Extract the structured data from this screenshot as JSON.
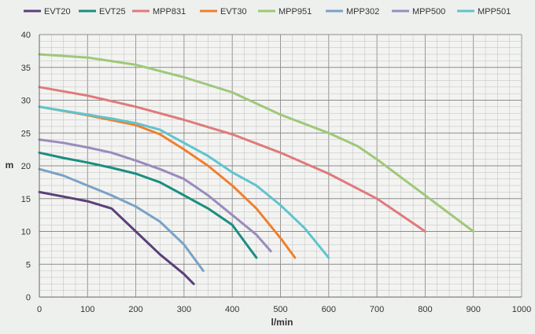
{
  "chart_data": {
    "type": "line",
    "xlabel": "l/min",
    "ylabel": "m",
    "xlim": [
      0,
      1000
    ],
    "ylim": [
      0,
      40
    ],
    "x_ticks": [
      0,
      100,
      200,
      300,
      400,
      500,
      600,
      700,
      800,
      900,
      1000
    ],
    "y_ticks": [
      0,
      5,
      10,
      15,
      20,
      25,
      30,
      35,
      40
    ],
    "grid": true,
    "legend_position": "top",
    "series": [
      {
        "name": "EVT20",
        "color": "#5b3f7a",
        "points": [
          [
            0,
            16
          ],
          [
            50,
            15.3
          ],
          [
            100,
            14.6
          ],
          [
            150,
            13.5
          ],
          [
            200,
            10
          ],
          [
            250,
            6.5
          ],
          [
            300,
            3.5
          ],
          [
            320,
            2
          ]
        ]
      },
      {
        "name": "EVT25",
        "color": "#1a8e80",
        "points": [
          [
            0,
            22
          ],
          [
            50,
            21.2
          ],
          [
            100,
            20.5
          ],
          [
            150,
            19.7
          ],
          [
            200,
            18.8
          ],
          [
            250,
            17.5
          ],
          [
            300,
            15.5
          ],
          [
            350,
            13.5
          ],
          [
            400,
            11
          ],
          [
            430,
            8
          ],
          [
            450,
            6
          ]
        ]
      },
      {
        "name": "MPP831",
        "color": "#e07a7a",
        "points": [
          [
            0,
            32
          ],
          [
            100,
            30.7
          ],
          [
            200,
            29
          ],
          [
            300,
            27
          ],
          [
            400,
            24.8
          ],
          [
            500,
            22
          ],
          [
            600,
            18.8
          ],
          [
            700,
            15
          ],
          [
            760,
            12
          ],
          [
            800,
            10
          ]
        ]
      },
      {
        "name": "EVT30",
        "color": "#f07f2e",
        "points": [
          [
            0,
            29
          ],
          [
            100,
            27.7
          ],
          [
            200,
            26.2
          ],
          [
            250,
            24.8
          ],
          [
            300,
            22.5
          ],
          [
            350,
            20
          ],
          [
            400,
            17
          ],
          [
            450,
            13.5
          ],
          [
            500,
            9
          ],
          [
            530,
            6
          ]
        ]
      },
      {
        "name": "MPP951",
        "color": "#9fc878",
        "points": [
          [
            0,
            37
          ],
          [
            100,
            36.5
          ],
          [
            200,
            35.4
          ],
          [
            300,
            33.5
          ],
          [
            400,
            31.2
          ],
          [
            500,
            27.8
          ],
          [
            600,
            25
          ],
          [
            660,
            23
          ],
          [
            700,
            21
          ],
          [
            800,
            15.5
          ],
          [
            900,
            10
          ]
        ]
      },
      {
        "name": "MPP302",
        "color": "#7aa2c6",
        "points": [
          [
            0,
            19.5
          ],
          [
            50,
            18.5
          ],
          [
            100,
            17
          ],
          [
            150,
            15.5
          ],
          [
            200,
            13.8
          ],
          [
            250,
            11.5
          ],
          [
            300,
            8
          ],
          [
            340,
            4
          ]
        ]
      },
      {
        "name": "MPP500",
        "color": "#9a8bbd",
        "points": [
          [
            0,
            24
          ],
          [
            50,
            23.5
          ],
          [
            100,
            22.8
          ],
          [
            150,
            22
          ],
          [
            200,
            20.8
          ],
          [
            250,
            19.5
          ],
          [
            300,
            18
          ],
          [
            350,
            15.5
          ],
          [
            400,
            12.5
          ],
          [
            450,
            9.5
          ],
          [
            480,
            7
          ]
        ]
      },
      {
        "name": "MPP501",
        "color": "#5fc4cf",
        "points": [
          [
            0,
            29
          ],
          [
            100,
            27.8
          ],
          [
            150,
            27.2
          ],
          [
            200,
            26.5
          ],
          [
            250,
            25.5
          ],
          [
            300,
            23.5
          ],
          [
            350,
            21.5
          ],
          [
            400,
            19
          ],
          [
            450,
            17
          ],
          [
            500,
            14
          ],
          [
            550,
            10.5
          ],
          [
            600,
            6
          ]
        ]
      }
    ]
  }
}
